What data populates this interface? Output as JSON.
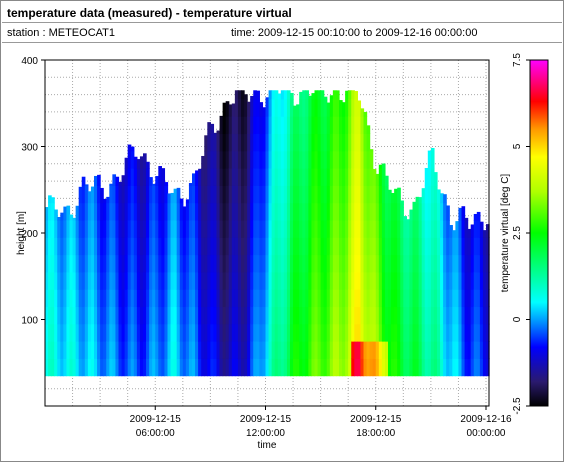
{
  "header": {
    "title": "temperature data (measured) - temperature virtual",
    "station": "station : METEOCAT1",
    "timerange": "time: 2009-12-15 00:10:00 to 2009-12-16 00:00:00"
  },
  "chart_data": {
    "type": "heatmap",
    "xlabel": "time",
    "ylabel": "height [m]",
    "colorbar_label": "temperature virtual [deg C]",
    "ylim": [
      0,
      400
    ],
    "clim": [
      -2.5,
      7.5
    ],
    "x_ticks": [
      {
        "hour": 6,
        "line1": "2009-12-15",
        "line2": "06:00:00"
      },
      {
        "hour": 12,
        "line1": "2009-12-15",
        "line2": "12:00:00"
      },
      {
        "hour": 18,
        "line1": "2009-12-15",
        "line2": "18:00:00"
      },
      {
        "hour": 24,
        "line1": "2009-12-16",
        "line2": "00:00:00"
      }
    ],
    "y_ticks": [
      100,
      200,
      300,
      400
    ],
    "colorbar_ticks": [
      "7.5",
      "5",
      "2.5",
      "0",
      "-2.5"
    ],
    "grid": true,
    "data_bottom_height_m": 35,
    "columns_hourly": [
      {
        "hour": 0,
        "top_m": 230,
        "temp_c": 0.3
      },
      {
        "hour": 1,
        "top_m": 220,
        "temp_c": 0.2
      },
      {
        "hour": 2,
        "top_m": 255,
        "temp_c": 0.0
      },
      {
        "hour": 3,
        "top_m": 250,
        "temp_c": -0.3
      },
      {
        "hour": 4,
        "top_m": 270,
        "temp_c": -0.6
      },
      {
        "hour": 5,
        "top_m": 295,
        "temp_c": -0.8
      },
      {
        "hour": 6,
        "top_m": 270,
        "temp_c": -0.5
      },
      {
        "hour": 7,
        "top_m": 240,
        "temp_c": 0.0
      },
      {
        "hour": 8,
        "top_m": 260,
        "temp_c": -0.6
      },
      {
        "hour": 9,
        "top_m": 320,
        "temp_c": -1.3
      },
      {
        "hour": 10,
        "top_m": 360,
        "temp_c": -1.7
      },
      {
        "hour": 11,
        "top_m": 360,
        "temp_c": -1.2
      },
      {
        "hour": 12,
        "top_m": 365,
        "temp_c": 0.3
      },
      {
        "hour": 13,
        "top_m": 365,
        "temp_c": 1.5
      },
      {
        "hour": 14,
        "top_m": 365,
        "temp_c": 2.4
      },
      {
        "hour": 15,
        "top_m": 365,
        "temp_c": 2.8
      },
      {
        "hour": 16,
        "top_m": 365,
        "temp_c": 3.2
      },
      {
        "hour": 17,
        "top_m": 360,
        "temp_c": 4.5
      },
      {
        "hour": 18,
        "top_m": 280,
        "temp_c": 3.0
      },
      {
        "hour": 19,
        "top_m": 240,
        "temp_c": 2.0
      },
      {
        "hour": 20,
        "top_m": 230,
        "temp_c": 1.6
      },
      {
        "hour": 21,
        "top_m": 285,
        "temp_c": 1.0
      },
      {
        "hour": 22,
        "top_m": 220,
        "temp_c": 0.0
      },
      {
        "hour": 23,
        "top_m": 210,
        "temp_c": -0.8
      },
      {
        "hour": 24,
        "top_m": 225,
        "temp_c": -1.0
      }
    ]
  }
}
